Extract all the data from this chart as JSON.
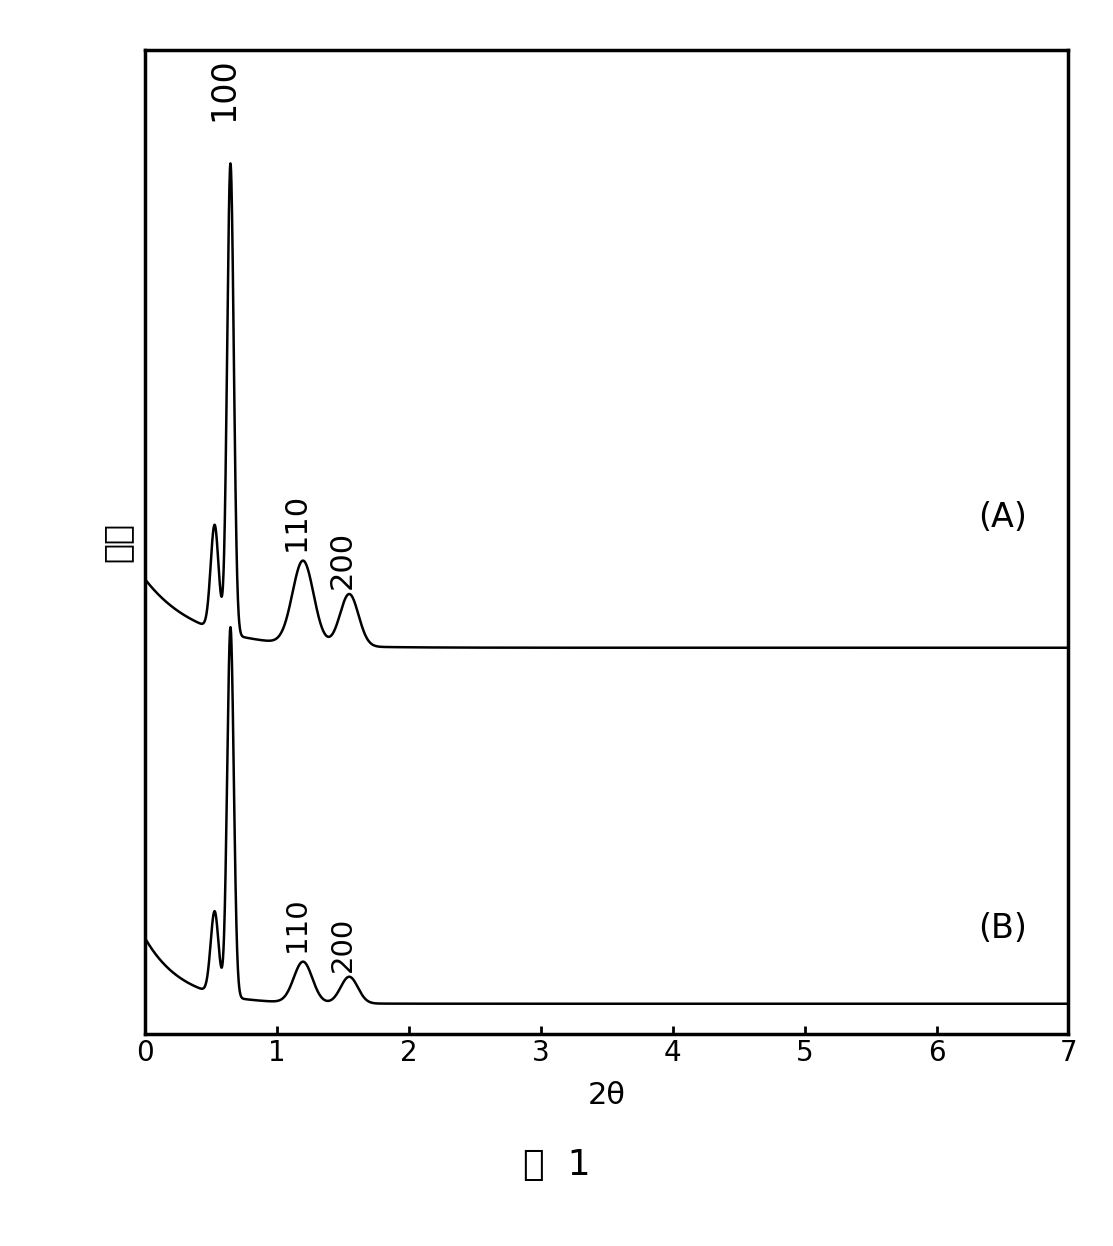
{
  "xlim": [
    0,
    7
  ],
  "xlabel": "2θ",
  "ylabel": "强度",
  "figure_caption": "图  1",
  "background_color": "#ffffff",
  "line_color": "#000000",
  "label_A": "(A)",
  "label_B": "(B)",
  "tick_fontsize": 20,
  "label_fontsize": 22,
  "annotation_fontsize": 22,
  "caption_fontsize": 26
}
